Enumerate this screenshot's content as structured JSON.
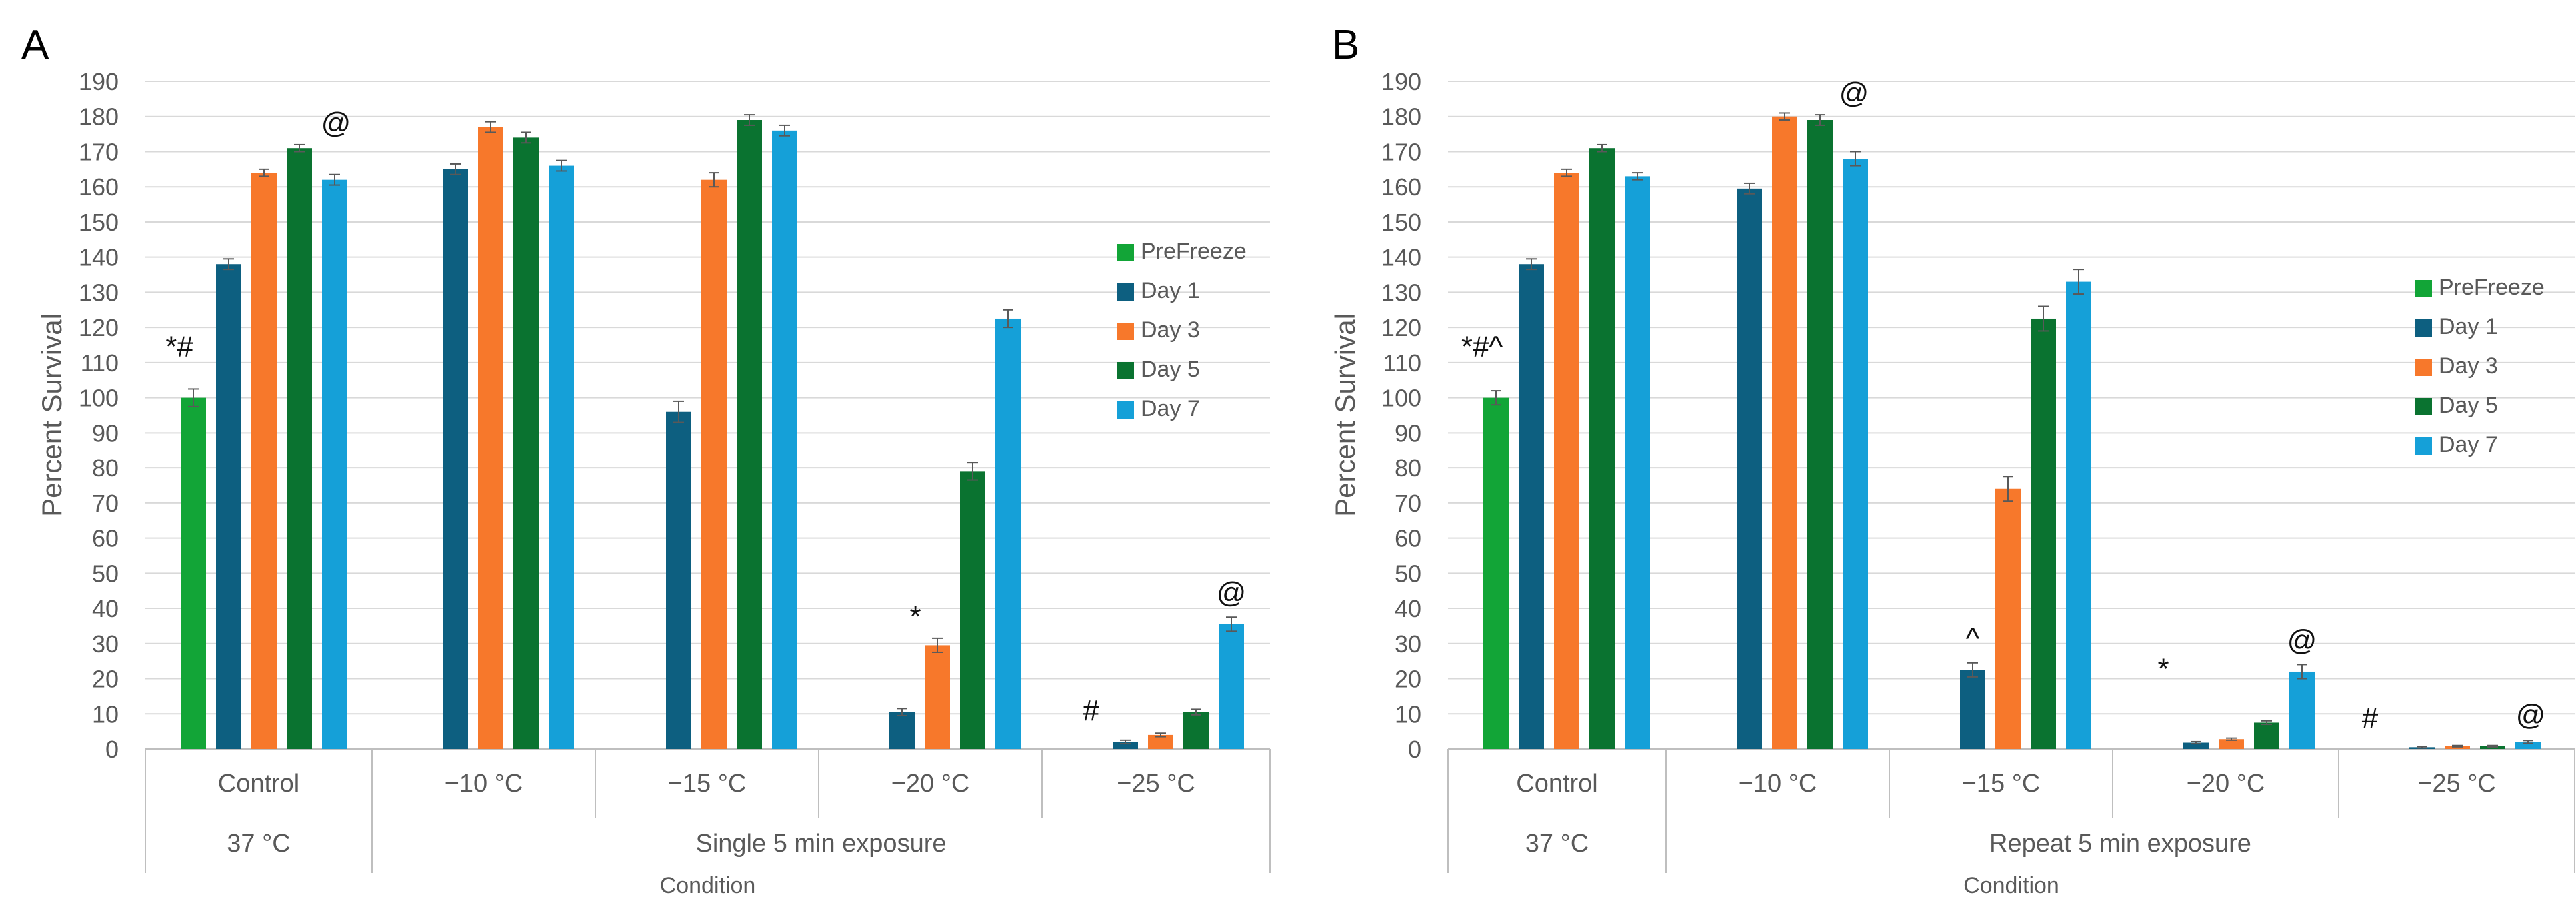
{
  "chart_data": [
    {
      "panel_label": "A",
      "type": "bar",
      "ylabel": "Percent Survival",
      "xlabel": "Condition",
      "ylim": [
        0,
        190
      ],
      "yticks": [
        0,
        10,
        20,
        30,
        40,
        50,
        60,
        70,
        80,
        90,
        100,
        110,
        120,
        130,
        140,
        150,
        160,
        170,
        180,
        190
      ],
      "grid": true,
      "legend_position": "right",
      "series": [
        {
          "name": "PreFreeze",
          "color": "#12a537"
        },
        {
          "name": "Day 1",
          "color": "#0d5f80"
        },
        {
          "name": "Day 3",
          "color": "#f7782b"
        },
        {
          "name": "Day 5",
          "color": "#0a7330"
        },
        {
          "name": "Day 7",
          "color": "#15a0d8"
        }
      ],
      "groups": [
        {
          "category": "Control",
          "values": [
            100,
            138,
            164,
            171,
            162
          ],
          "errors": [
            2.5,
            1.5,
            1,
            1,
            1.5
          ],
          "annotations": [
            {
              "text": "*#",
              "series": 0
            },
            {
              "text": "@",
              "series": 3
            }
          ]
        },
        {
          "category": "−10 °C",
          "values": [
            null,
            165,
            177,
            174,
            166
          ],
          "errors": [
            0,
            1.5,
            1.5,
            1.5,
            1.5
          ],
          "annotations": []
        },
        {
          "category": "−15 °C",
          "values": [
            null,
            96,
            162,
            179,
            176
          ],
          "errors": [
            0,
            3,
            2,
            1.5,
            1.5
          ],
          "annotations": []
        },
        {
          "category": "−20 °C",
          "values": [
            null,
            10.5,
            29.5,
            79,
            122.5
          ],
          "errors": [
            0,
            1,
            2,
            2.5,
            2.5
          ],
          "annotations": [
            {
              "text": "*",
              "series": 2
            }
          ]
        },
        {
          "category": "−25 °C",
          "values": [
            null,
            2,
            4,
            10.5,
            35.5
          ],
          "errors": [
            0,
            0.5,
            0.5,
            0.8,
            2
          ],
          "annotations": [
            {
              "text": "#",
              "series": 1
            },
            {
              "text": "@",
              "series": 4
            }
          ]
        }
      ],
      "row2": [
        {
          "label": "37 °C",
          "span": "control"
        },
        {
          "label": "Single 5 min exposure",
          "span": "exposures"
        }
      ]
    },
    {
      "panel_label": "B",
      "type": "bar",
      "ylabel": "Percent Survival",
      "xlabel": "Condition",
      "ylim": [
        0,
        190
      ],
      "yticks": [
        0,
        10,
        20,
        30,
        40,
        50,
        60,
        70,
        80,
        90,
        100,
        110,
        120,
        130,
        140,
        150,
        160,
        170,
        180,
        190
      ],
      "grid": true,
      "legend_position": "right",
      "series": [
        {
          "name": "PreFreeze",
          "color": "#12a537"
        },
        {
          "name": "Day 1",
          "color": "#0d5f80"
        },
        {
          "name": "Day 3",
          "color": "#f7782b"
        },
        {
          "name": "Day 5",
          "color": "#0a7330"
        },
        {
          "name": "Day 7",
          "color": "#15a0d8"
        }
      ],
      "groups": [
        {
          "category": "Control",
          "values": [
            100,
            138,
            164,
            171,
            163
          ],
          "errors": [
            2,
            1.5,
            1,
            1,
            1
          ],
          "annotations": [
            {
              "text": "*#^",
              "series": 0
            }
          ]
        },
        {
          "category": "−10 °C",
          "values": [
            null,
            159.5,
            180,
            179,
            168
          ],
          "errors": [
            0,
            1.5,
            1,
            1.5,
            2
          ],
          "annotations": [
            {
              "text": "@",
              "series": 3
            }
          ]
        },
        {
          "category": "−15 °C",
          "values": [
            null,
            22.5,
            74,
            122.5,
            133
          ],
          "errors": [
            0,
            2,
            3.5,
            3.5,
            3.5
          ],
          "annotations": [
            {
              "text": "^",
              "series": 1
            }
          ]
        },
        {
          "category": "−20 °C",
          "values": [
            null,
            1.8,
            2.8,
            7.5,
            22
          ],
          "errors": [
            0,
            0.3,
            0.3,
            0.5,
            2
          ],
          "annotations": [
            {
              "text": "*",
              "series": 1
            },
            {
              "text": "@",
              "series": 4
            }
          ]
        },
        {
          "category": "−25 °C",
          "values": [
            null,
            0.5,
            0.8,
            0.8,
            2
          ],
          "errors": [
            0,
            0.2,
            0.2,
            0.2,
            0.4
          ],
          "annotations": [
            {
              "text": "#",
              "series": 1
            },
            {
              "text": "@",
              "series": 4
            }
          ]
        }
      ],
      "row2": [
        {
          "label": "37 °C",
          "span": "control"
        },
        {
          "label": "Repeat 5 min exposure",
          "span": "exposures"
        }
      ]
    }
  ]
}
